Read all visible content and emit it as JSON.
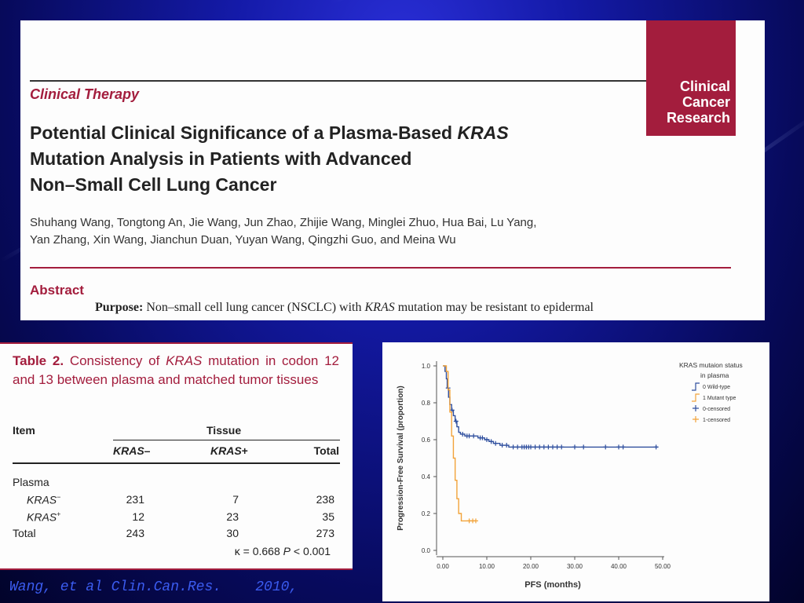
{
  "journal_logo": [
    "Clinical",
    "Cancer",
    "Research"
  ],
  "section_label": "Clinical Therapy",
  "title_lines": [
    {
      "pre": "Potential Clinical Significance of a Plasma-Based ",
      "em": "KRAS",
      "post": ""
    },
    {
      "pre": "Mutation Analysis in Patients with Advanced",
      "em": "",
      "post": ""
    },
    {
      "pre": "Non–Small Cell Lung Cancer",
      "em": "",
      "post": ""
    }
  ],
  "authors": [
    "Shuhang Wang, Tongtong An, Jie Wang, Jun Zhao, Zhijie Wang, Minglei Zhuo, Hua Bai, Lu Yang,",
    "Yan Zhang, Xin Wang, Jianchun Duan, Yuyan Wang, Qingzhi Guo, and Meina Wu"
  ],
  "abstract_label": "Abstract",
  "purpose": {
    "label": "Purpose:",
    "pre": "Non–small cell lung cancer (NSCLC) with",
    "em": "KRAS",
    "post": "mutation may be resistant to epidermal"
  },
  "table": {
    "caption_bold": "Table 2.",
    "caption_pre": "Consistency of",
    "caption_em": "KRAS",
    "caption_post": "mutation in codon 12 and 13 between plasma and matched tumor tissues",
    "item_header": "Item",
    "tissue_header": "Tissue",
    "col_headers": [
      {
        "em": "KRAS",
        "sfx": "–"
      },
      {
        "em": "KRAS",
        "sfx": "+"
      },
      {
        "em": "",
        "sfx": "Total"
      }
    ],
    "group_label": "Plasma",
    "rows": [
      {
        "label": "KRAS",
        "sup": "−",
        "values": [
          "231",
          "7",
          "238"
        ]
      },
      {
        "label": "KRAS",
        "sup": "+",
        "values": [
          "12",
          "23",
          "35"
        ]
      },
      {
        "label": "Total",
        "sup": "",
        "values": [
          "243",
          "30",
          "273"
        ]
      }
    ],
    "footnote": {
      "kappa": "κ = 0.668 ",
      "p": "P",
      "rest": " < 0.001"
    }
  },
  "chart_data": {
    "type": "line",
    "subtype": "kaplan-meier step",
    "xlabel": "PFS (months)",
    "ylabel": "Progression-Free Survival (proportion)",
    "xlim": [
      0,
      50
    ],
    "ylim": [
      0,
      1
    ],
    "x_ticks": [
      "0.00",
      "10.00",
      "20.00",
      "30.00",
      "40.00",
      "50.00"
    ],
    "y_ticks": [
      "0.0",
      "0.2",
      "0.4",
      "0.6",
      "0.8",
      "1.0"
    ],
    "legend_title": [
      "KRAS mutaion status",
      "in plasma"
    ],
    "legend_entries": [
      "0 Wild-type",
      "1 Mutant type",
      "0-censored",
      "1-censored"
    ],
    "series": [
      {
        "name": "0 Wild-type",
        "color": "#2f4f9e",
        "x": [
          0,
          0.5,
          0.8,
          1.0,
          1.3,
          1.6,
          2.0,
          2.4,
          2.8,
          3.2,
          3.6,
          4.0,
          5.0,
          6.5,
          8.0,
          9.5,
          10.5,
          11.5,
          13.0,
          15.0,
          49.0
        ],
        "y": [
          1.0,
          0.97,
          0.93,
          0.88,
          0.83,
          0.79,
          0.76,
          0.73,
          0.7,
          0.67,
          0.64,
          0.63,
          0.62,
          0.62,
          0.61,
          0.6,
          0.59,
          0.58,
          0.57,
          0.56,
          0.56
        ],
        "censored": [
          1.2,
          2.1,
          3.0,
          4.5,
          5.5,
          6.0,
          7.0,
          8.5,
          9.0,
          10.0,
          11.0,
          12.0,
          13.5,
          14.5,
          16.0,
          17.0,
          18.0,
          18.5,
          19.0,
          19.5,
          20.0,
          21.0,
          22.0,
          23.0,
          24.0,
          25.0,
          26.0,
          27.0,
          30.0,
          32.0,
          37.0,
          40.0,
          41.0,
          48.5
        ]
      },
      {
        "name": "1 Mutant type",
        "color": "#f2a33a",
        "x": [
          0,
          0.8,
          1.2,
          1.6,
          2.0,
          2.4,
          2.8,
          3.2,
          3.6,
          4.2,
          5.5,
          7.5
        ],
        "y": [
          1.0,
          0.97,
          0.87,
          0.75,
          0.62,
          0.5,
          0.38,
          0.28,
          0.2,
          0.16,
          0.16,
          0.16
        ],
        "censored": [
          6.0,
          6.8,
          7.5
        ]
      }
    ]
  },
  "citation": "Wang, et al Clin.Can.Res.    2010,"
}
